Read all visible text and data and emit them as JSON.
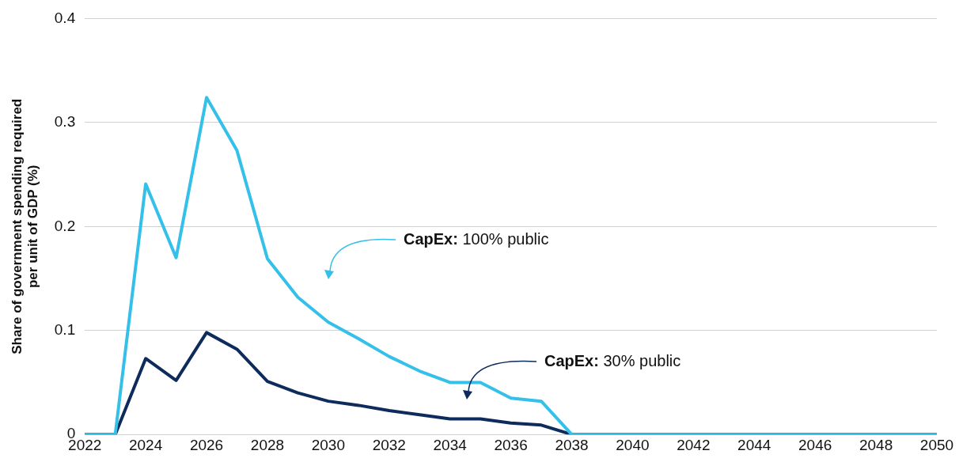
{
  "chart_data": {
    "type": "line",
    "ylabel": "Share of government spending required per unit of GDP (%)",
    "x": [
      2022,
      2023,
      2024,
      2025,
      2026,
      2027,
      2028,
      2029,
      2030,
      2031,
      2032,
      2033,
      2034,
      2035,
      2036,
      2037,
      2038,
      2039,
      2040,
      2041,
      2042,
      2043,
      2044,
      2045,
      2046,
      2047,
      2048,
      2049,
      2050
    ],
    "series": [
      {
        "color": "#35c0ea",
        "values": [
          0,
          0,
          0.241,
          0.17,
          0.324,
          0.273,
          0.169,
          0.132,
          0.108,
          0.092,
          0.075,
          0.061,
          0.05,
          0.05,
          0.035,
          0.032,
          0,
          0,
          0,
          0,
          0,
          0,
          0,
          0,
          0,
          0,
          0,
          0,
          0
        ]
      },
      {
        "color": "#0d2b5b",
        "values": [
          0,
          0,
          0.073,
          0.052,
          0.098,
          0.082,
          0.051,
          0.04,
          0.032,
          0.028,
          0.023,
          0.019,
          0.015,
          0.015,
          0.011,
          0.009,
          0,
          0,
          0,
          0,
          0,
          0,
          0,
          0,
          0,
          0,
          0,
          0,
          0
        ]
      }
    ],
    "xlim": [
      2022,
      2050
    ],
    "xticks": [
      2022,
      2024,
      2026,
      2028,
      2030,
      2032,
      2034,
      2036,
      2038,
      2040,
      2042,
      2044,
      2046,
      2048,
      2050
    ],
    "ylim": [
      0,
      0.4
    ],
    "yticks": [
      0,
      0.1,
      0.2,
      0.3,
      0.4
    ],
    "grid": "y",
    "legend": false,
    "marker": "none",
    "line_style": "solid",
    "annotations": [
      "CapEx: 100% public",
      "CapEx: 30% public"
    ]
  }
}
